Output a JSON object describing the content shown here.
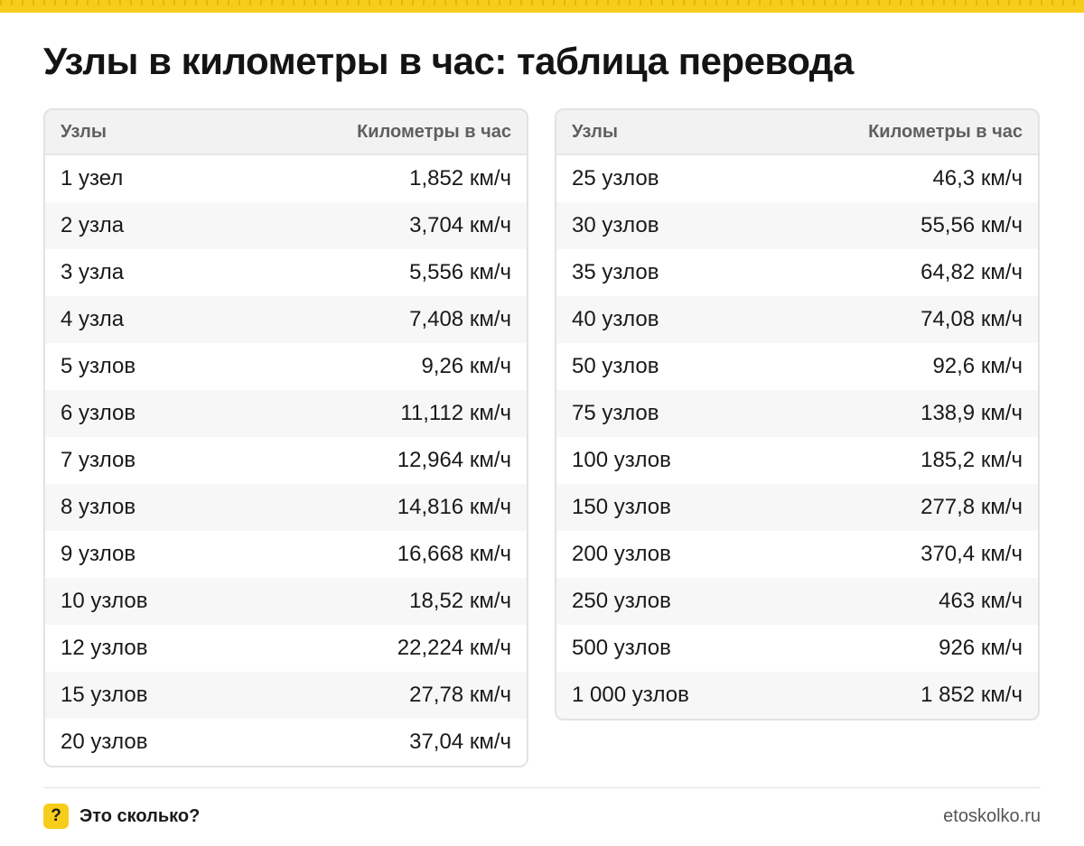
{
  "page": {
    "title": "Узлы в километры в час: таблица перевода"
  },
  "tables": {
    "left": {
      "headers": [
        "Узлы",
        "Километры в час"
      ],
      "rows": [
        [
          "1 узел",
          "1,852 км/ч"
        ],
        [
          "2 узла",
          "3,704 км/ч"
        ],
        [
          "3 узла",
          "5,556 км/ч"
        ],
        [
          "4 узла",
          "7,408 км/ч"
        ],
        [
          "5 узлов",
          "9,26 км/ч"
        ],
        [
          "6 узлов",
          "11,112 км/ч"
        ],
        [
          "7 узлов",
          "12,964 км/ч"
        ],
        [
          "8 узлов",
          "14,816 км/ч"
        ],
        [
          "9 узлов",
          "16,668 км/ч"
        ],
        [
          "10 узлов",
          "18,52 км/ч"
        ],
        [
          "12 узлов",
          "22,224 км/ч"
        ],
        [
          "15 узлов",
          "27,78 км/ч"
        ],
        [
          "20 узлов",
          "37,04 км/ч"
        ]
      ]
    },
    "right": {
      "headers": [
        "Узлы",
        "Километры в час"
      ],
      "rows": [
        [
          "25 узлов",
          "46,3 км/ч"
        ],
        [
          "30 узлов",
          "55,56 км/ч"
        ],
        [
          "35 узлов",
          "64,82 км/ч"
        ],
        [
          "40 узлов",
          "74,08 км/ч"
        ],
        [
          "50 узлов",
          "92,6 км/ч"
        ],
        [
          "75 узлов",
          "138,9 км/ч"
        ],
        [
          "100 узлов",
          "185,2 км/ч"
        ],
        [
          "150 узлов",
          "277,8 км/ч"
        ],
        [
          "200 узлов",
          "370,4 км/ч"
        ],
        [
          "250 узлов",
          "463 км/ч"
        ],
        [
          "500 узлов",
          "926 км/ч"
        ],
        [
          "1 000 узлов",
          "1 852 км/ч"
        ]
      ]
    }
  },
  "footer": {
    "brand_icon": "?",
    "brand_name": "Это сколько?",
    "site": "etoskolko.ru"
  },
  "colors": {
    "accent": "#f7cd1b",
    "header_bg": "#f2f2f2",
    "stripe_bg": "#f7f7f7",
    "border": "#e2e2e2"
  }
}
